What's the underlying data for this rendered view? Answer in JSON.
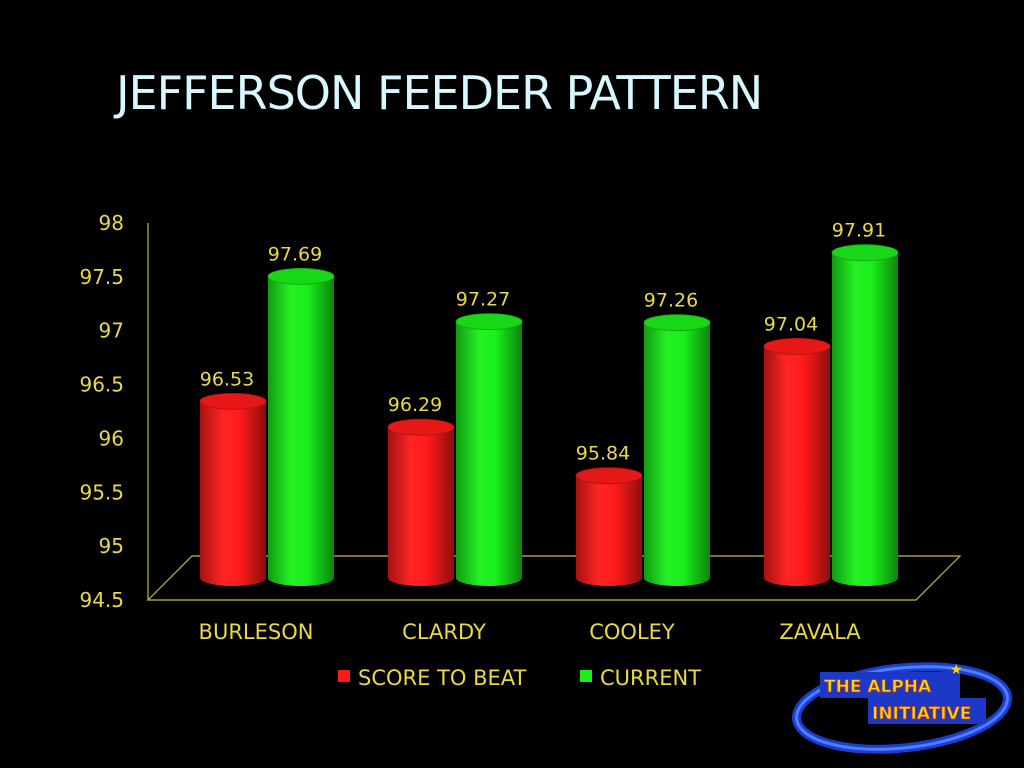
{
  "slide": {
    "title": "JEFFERSON FEEDER PATTERN"
  },
  "chart_data": {
    "type": "bar",
    "categories": [
      "BURLESON",
      "CLARDY",
      "COOLEY",
      "ZAVALA"
    ],
    "series": [
      {
        "name": "SCORE TO BEAT",
        "values": [
          96.53,
          96.29,
          95.84,
          97.04
        ],
        "color": "#ff1a1a"
      },
      {
        "name": "CURRENT",
        "values": [
          97.69,
          97.27,
          97.26,
          97.91
        ],
        "color": "#1aef1a"
      }
    ],
    "data_labels": [
      [
        "96.53",
        "96.29",
        "95.84",
        "97.04"
      ],
      [
        "97.69",
        "97.27",
        "97.26",
        "97.91"
      ]
    ],
    "yticks": [
      94.5,
      95,
      95.5,
      96,
      96.5,
      97,
      97.5,
      98
    ],
    "ytick_labels": [
      "94.5",
      "95",
      "95.5",
      "96",
      "96.5",
      "97",
      "97.5",
      "98"
    ],
    "ylim": [
      94.5,
      98
    ],
    "title": "",
    "xlabel": "",
    "ylabel": "",
    "grid": false,
    "legend_position": "bottom",
    "style": "3d-cylinder"
  },
  "colors": {
    "background": "#000000",
    "title": "#d9f7ff",
    "labels": "#e8d84a"
  },
  "logo": {
    "line1": "THE ALPHA",
    "line2": "INITIATIVE"
  }
}
